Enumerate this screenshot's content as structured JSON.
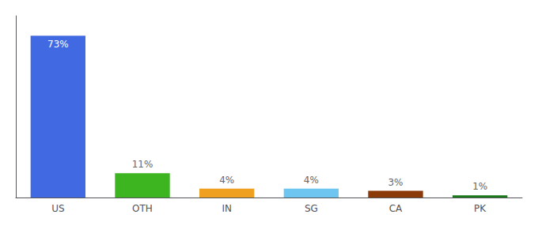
{
  "chart_data": {
    "type": "bar",
    "categories": [
      "US",
      "OTH",
      "IN",
      "SG",
      "CA",
      "PK"
    ],
    "values": [
      73,
      11,
      4,
      4,
      3,
      1
    ],
    "value_labels": [
      "73%",
      "11%",
      "4%",
      "4%",
      "3%",
      "1%"
    ],
    "colors": [
      "#4169e1",
      "#3cb520",
      "#f0a020",
      "#6ec6f0",
      "#8b3a0a",
      "#1a7a1a"
    ],
    "ylim": [
      0,
      82
    ],
    "grid": false,
    "data_labels": true,
    "tick_labels": "x"
  }
}
